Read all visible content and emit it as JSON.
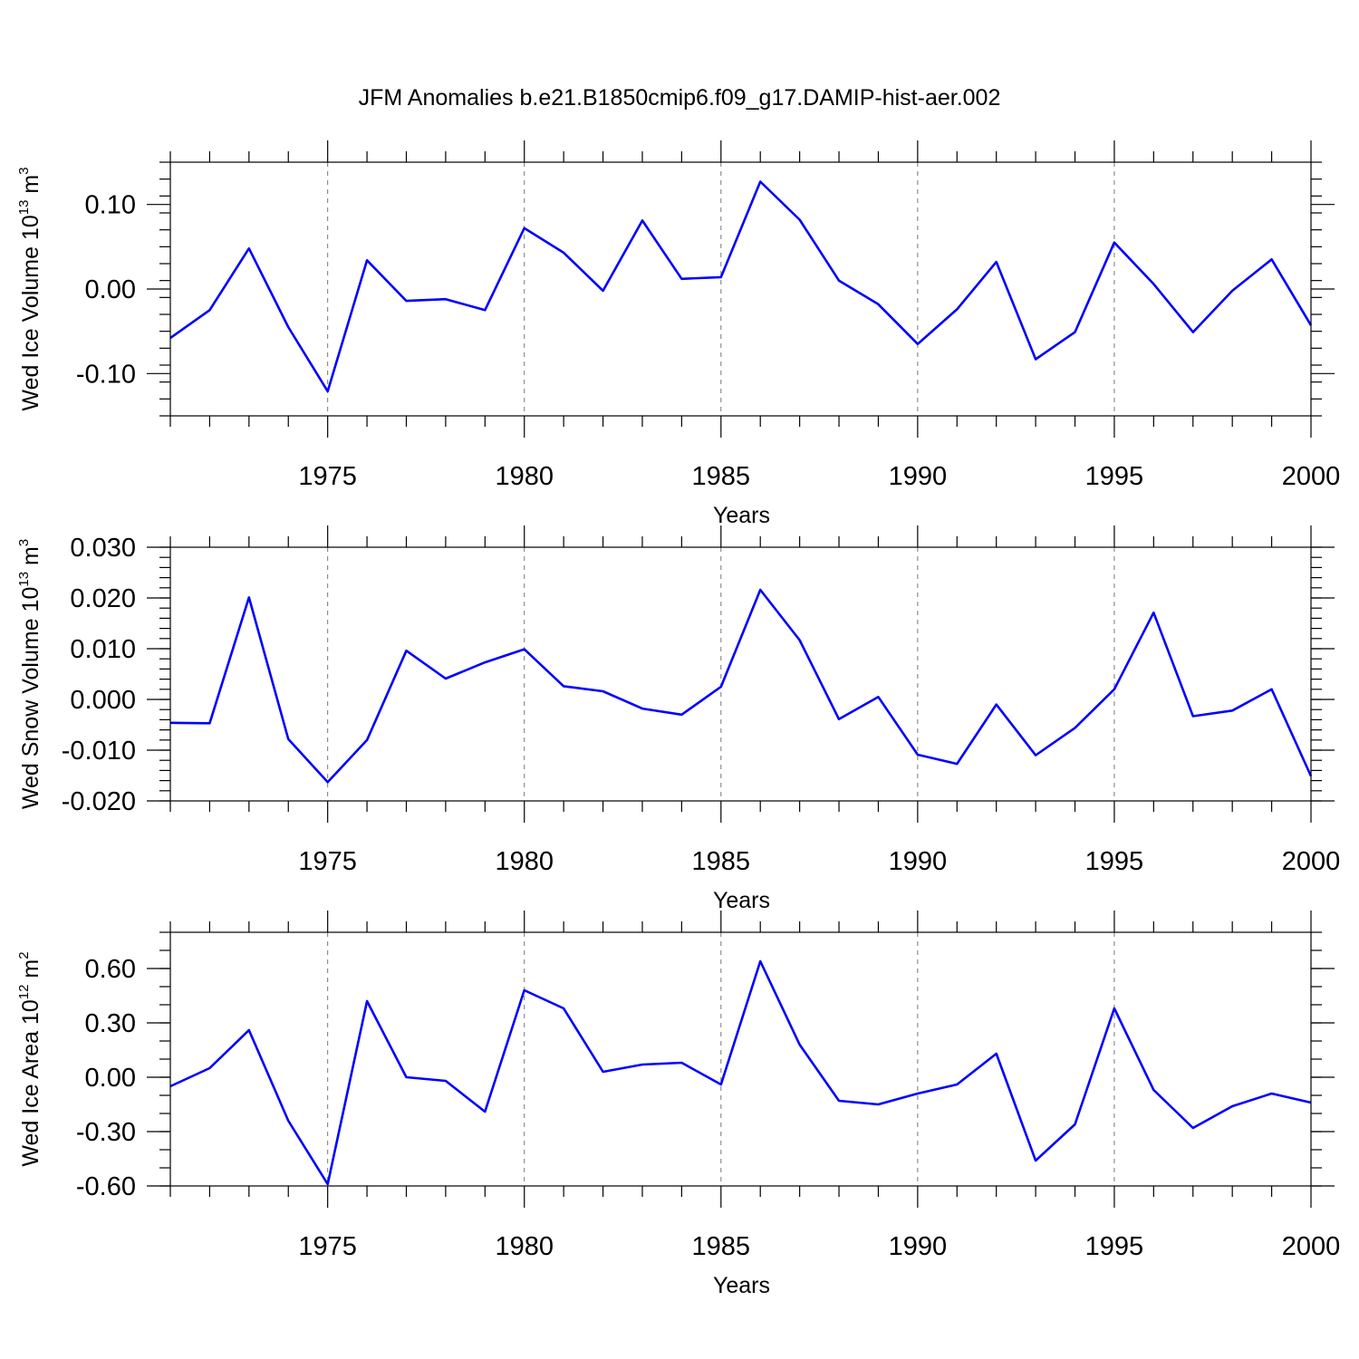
{
  "title": "JFM Anomalies b.e21.B1850cmip6.f09_g17.DAMIP-hist-aer.002",
  "colors": {
    "line": "#0000ff",
    "grid": "#777777",
    "axis": "#000000"
  },
  "chart_data": [
    {
      "type": "line",
      "xlabel": "Years",
      "ylabel": {
        "main": "Wed Ice Volume 10",
        "exp": "13",
        "unit": " m",
        "unit_exp": "3"
      },
      "xlim": [
        1971,
        2000
      ],
      "ylim": [
        -0.15,
        0.15
      ],
      "xticks": [
        "1975",
        "1980",
        "1985",
        "1990",
        "1995",
        "2000"
      ],
      "yticks": [
        "0.10",
        "0.00",
        "-0.10"
      ],
      "ytick_values": [
        0.1,
        0.0,
        -0.1
      ],
      "yminor_step": 0.02,
      "x": [
        1971,
        1972,
        1973,
        1974,
        1975,
        1976,
        1977,
        1978,
        1979,
        1980,
        1981,
        1982,
        1983,
        1984,
        1985,
        1986,
        1987,
        1988,
        1989,
        1990,
        1991,
        1992,
        1993,
        1994,
        1995,
        1996,
        1997,
        1998,
        1999,
        2000
      ],
      "values": [
        -0.058,
        -0.025,
        0.048,
        -0.045,
        -0.121,
        0.034,
        -0.014,
        -0.012,
        -0.025,
        0.072,
        0.043,
        -0.002,
        0.081,
        0.012,
        0.014,
        0.127,
        0.082,
        0.01,
        -0.018,
        -0.065,
        -0.024,
        0.032,
        -0.083,
        -0.051,
        0.055,
        0.006,
        -0.051,
        -0.002,
        0.035,
        -0.043
      ]
    },
    {
      "type": "line",
      "xlabel": "Years",
      "ylabel": {
        "main": "Wed Snow Volume 10",
        "exp": "13",
        "unit": " m",
        "unit_exp": "3"
      },
      "xlim": [
        1971,
        2000
      ],
      "ylim": [
        -0.02,
        0.03
      ],
      "xticks": [
        "1975",
        "1980",
        "1985",
        "1990",
        "1995",
        "2000"
      ],
      "yticks": [
        "0.030",
        "0.020",
        "0.010",
        "0.000",
        "-0.010",
        "-0.020"
      ],
      "ytick_values": [
        0.03,
        0.02,
        0.01,
        0.0,
        -0.01,
        -0.02
      ],
      "yminor_step": 0.002,
      "x": [
        1971,
        1972,
        1973,
        1974,
        1975,
        1976,
        1977,
        1978,
        1979,
        1980,
        1981,
        1982,
        1983,
        1984,
        1985,
        1986,
        1987,
        1988,
        1989,
        1990,
        1991,
        1992,
        1993,
        1994,
        1995,
        1996,
        1997,
        1998,
        1999,
        2000
      ],
      "values": [
        -0.0046,
        -0.0047,
        0.0201,
        -0.0078,
        -0.0163,
        -0.008,
        0.0096,
        0.0041,
        0.0073,
        0.0099,
        0.0026,
        0.0016,
        -0.0018,
        -0.003,
        0.0025,
        0.0216,
        0.0117,
        -0.0039,
        0.0005,
        -0.0109,
        -0.0127,
        -0.001,
        -0.011,
        -0.0056,
        0.002,
        0.0171,
        -0.0033,
        -0.0022,
        0.002,
        -0.0151
      ]
    },
    {
      "type": "line",
      "xlabel": "Years",
      "ylabel": {
        "main": "Wed Ice Area 10",
        "exp": "12",
        "unit": " m",
        "unit_exp": "2"
      },
      "xlim": [
        1971,
        2000
      ],
      "ylim": [
        -0.6,
        0.8
      ],
      "xticks": [
        "1975",
        "1980",
        "1985",
        "1990",
        "1995",
        "2000"
      ],
      "yticks": [
        "0.60",
        "0.30",
        "0.00",
        "-0.30",
        "-0.60"
      ],
      "ytick_values": [
        0.6,
        0.3,
        0.0,
        -0.3,
        -0.6
      ],
      "yminor_step": 0.1,
      "x": [
        1971,
        1972,
        1973,
        1974,
        1975,
        1976,
        1977,
        1978,
        1979,
        1980,
        1981,
        1982,
        1983,
        1984,
        1985,
        1986,
        1987,
        1988,
        1989,
        1990,
        1991,
        1992,
        1993,
        1994,
        1995,
        1996,
        1997,
        1998,
        1999,
        2000
      ],
      "values": [
        -0.05,
        0.05,
        0.26,
        -0.24,
        -0.59,
        0.42,
        0.0,
        -0.02,
        -0.19,
        0.48,
        0.38,
        0.03,
        0.07,
        0.08,
        -0.04,
        0.64,
        0.18,
        -0.13,
        -0.15,
        -0.09,
        -0.04,
        0.13,
        -0.46,
        -0.26,
        0.38,
        -0.07,
        -0.28,
        -0.16,
        -0.09,
        -0.14
      ]
    }
  ]
}
